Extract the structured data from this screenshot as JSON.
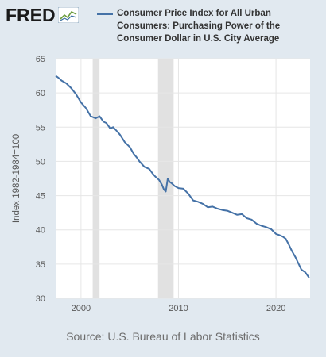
{
  "header": {
    "logo_text": "FRED",
    "logo_icon": "fred-graph-icon"
  },
  "source": "Source: U.S. Bureau of Labor Statistics",
  "colors": {
    "background": "#e1e9f0",
    "plot_background": "#ffffff",
    "line": "#4572a7",
    "recession": "#e1e1e1",
    "grid": "#e6e6e6"
  },
  "chart_data": {
    "type": "line",
    "title": "Consumer Price Index for All Urban Consumers: Purchasing Power of the Consumer Dollar in U.S. City Average",
    "xlabel": "",
    "ylabel": "Index 1982-1984=100",
    "xlim": [
      1997.4,
      2023.5
    ],
    "ylim": [
      30,
      65
    ],
    "yticks": [
      30,
      35,
      40,
      45,
      50,
      55,
      60,
      65
    ],
    "xticks": [
      2000,
      2010,
      2020
    ],
    "grid": true,
    "legend": "top",
    "recessions": [
      [
        2001.2,
        2001.9
      ],
      [
        2007.9,
        2009.5
      ]
    ],
    "series": [
      {
        "name": "Consumer Price Index for All Urban Consumers: Purchasing Power of the Consumer Dollar in U.S. City Average",
        "x": [
          1997.4,
          1997.7,
          1998.0,
          1998.5,
          1999.0,
          1999.5,
          2000.0,
          2000.5,
          2001.0,
          2001.5,
          2001.9,
          2002.3,
          2002.6,
          2003.0,
          2003.3,
          2003.7,
          2004.0,
          2004.5,
          2005.0,
          2005.4,
          2005.7,
          2006.0,
          2006.5,
          2007.0,
          2007.3,
          2007.6,
          2008.0,
          2008.3,
          2008.5,
          2008.7,
          2008.9,
          2009.1,
          2009.3,
          2009.6,
          2010.0,
          2010.5,
          2011.0,
          2011.5,
          2012.0,
          2012.5,
          2013.0,
          2013.5,
          2014.0,
          2014.5,
          2015.0,
          2015.5,
          2016.0,
          2016.5,
          2017.0,
          2017.5,
          2018.0,
          2018.5,
          2019.0,
          2019.5,
          2020.0,
          2020.4,
          2020.7,
          2021.0,
          2021.3,
          2021.6,
          2022.0,
          2022.3,
          2022.6,
          2023.0,
          2023.4
        ],
        "y": [
          62.5,
          62.2,
          61.8,
          61.4,
          60.7,
          59.8,
          58.6,
          57.8,
          56.6,
          56.3,
          56.6,
          55.8,
          55.6,
          54.8,
          55.0,
          54.4,
          53.9,
          52.8,
          52.1,
          51.1,
          50.6,
          50.0,
          49.2,
          48.9,
          48.3,
          47.8,
          47.3,
          46.6,
          45.9,
          45.6,
          47.5,
          47.0,
          46.8,
          46.4,
          46.1,
          46.0,
          45.3,
          44.3,
          44.1,
          43.8,
          43.3,
          43.4,
          43.1,
          42.9,
          42.8,
          42.5,
          42.2,
          42.3,
          41.7,
          41.5,
          40.9,
          40.6,
          40.4,
          40.1,
          39.4,
          39.2,
          39.0,
          38.7,
          37.9,
          37.0,
          36.0,
          35.1,
          34.2,
          33.8,
          33.0
        ]
      }
    ]
  }
}
